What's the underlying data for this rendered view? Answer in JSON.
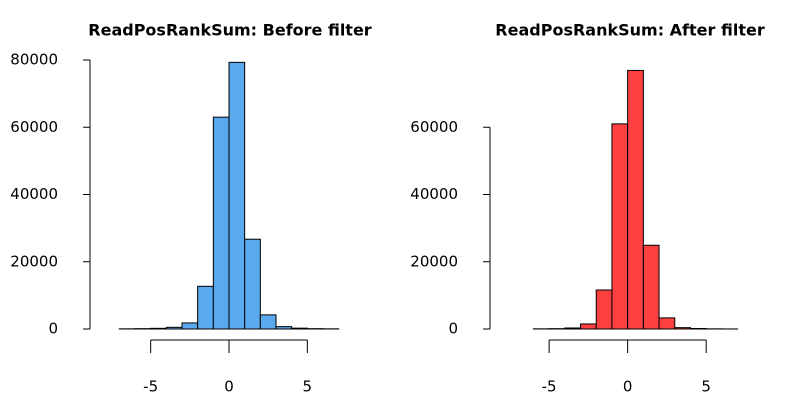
{
  "chart_data": [
    {
      "type": "histogram",
      "title": "ReadPosRankSum: Before filter",
      "bins": [
        -9,
        -8,
        -7,
        -6,
        -5,
        -4,
        -3,
        -2,
        -1,
        0,
        1,
        2,
        3,
        4,
        5,
        6,
        7,
        8,
        9
      ],
      "values": [
        0,
        0,
        50,
        100,
        200,
        500,
        1800,
        12700,
        63000,
        79300,
        26700,
        4200,
        700,
        250,
        100,
        50,
        0,
        0
      ],
      "color": "#5aa9ee",
      "xlim": [
        -9,
        9
      ],
      "xticks": [
        -5,
        0,
        5
      ],
      "ylim": [
        0,
        80000
      ],
      "yticks": [
        0,
        20000,
        40000,
        60000,
        80000
      ]
    },
    {
      "type": "histogram",
      "title": "ReadPosRankSum: After filter",
      "bins": [
        -8,
        -7,
        -6,
        -5,
        -4,
        -3,
        -2,
        -1,
        0,
        1,
        2,
        3,
        4,
        5,
        6,
        7,
        8,
        9
      ],
      "values": [
        0,
        0,
        50,
        100,
        300,
        1500,
        11600,
        61000,
        76900,
        24900,
        3300,
        400,
        150,
        50,
        20,
        0,
        0
      ],
      "color": "#fd4040",
      "xlim": [
        -8,
        9
      ],
      "xticks": [
        -5,
        0,
        5
      ],
      "ylim": [
        0,
        80000
      ],
      "yticks": [
        0,
        20000,
        40000,
        60000
      ]
    }
  ]
}
